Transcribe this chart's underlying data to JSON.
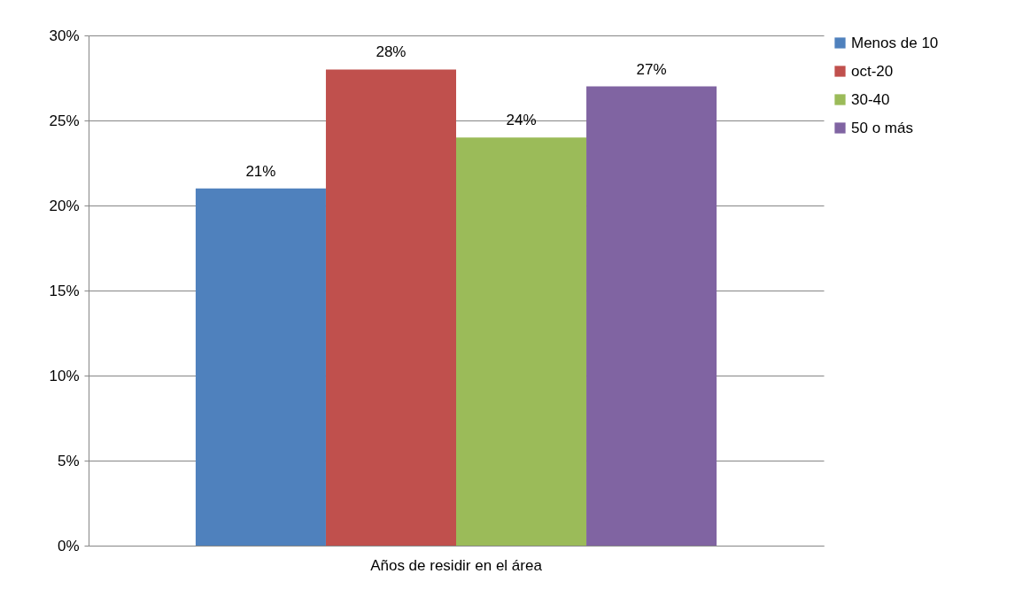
{
  "chart_data": {
    "type": "bar",
    "categories": [
      "Años de residir en el área"
    ],
    "series": [
      {
        "name": "Menos de 10",
        "color": "#4f81bd",
        "values": [
          21
        ],
        "value_labels": [
          "21%"
        ]
      },
      {
        "name": "oct-20",
        "color": "#c0504d",
        "values": [
          28
        ],
        "value_labels": [
          "28%"
        ]
      },
      {
        "name": "30-40",
        "color": "#9bbb59",
        "values": [
          24
        ],
        "value_labels": [
          "24%"
        ]
      },
      {
        "name": "50 o más",
        "color": "#8064a2",
        "values": [
          27
        ],
        "value_labels": [
          "27%"
        ]
      }
    ],
    "ylim": [
      0,
      30
    ],
    "yticks": [
      {
        "value": 0,
        "label": "0%"
      },
      {
        "value": 5,
        "label": "5%"
      },
      {
        "value": 10,
        "label": "10%"
      },
      {
        "value": 15,
        "label": "15%"
      },
      {
        "value": 20,
        "label": "20%"
      },
      {
        "value": 25,
        "label": "25%"
      },
      {
        "value": 30,
        "label": "30%"
      }
    ],
    "grid": "y",
    "legend": "right"
  }
}
